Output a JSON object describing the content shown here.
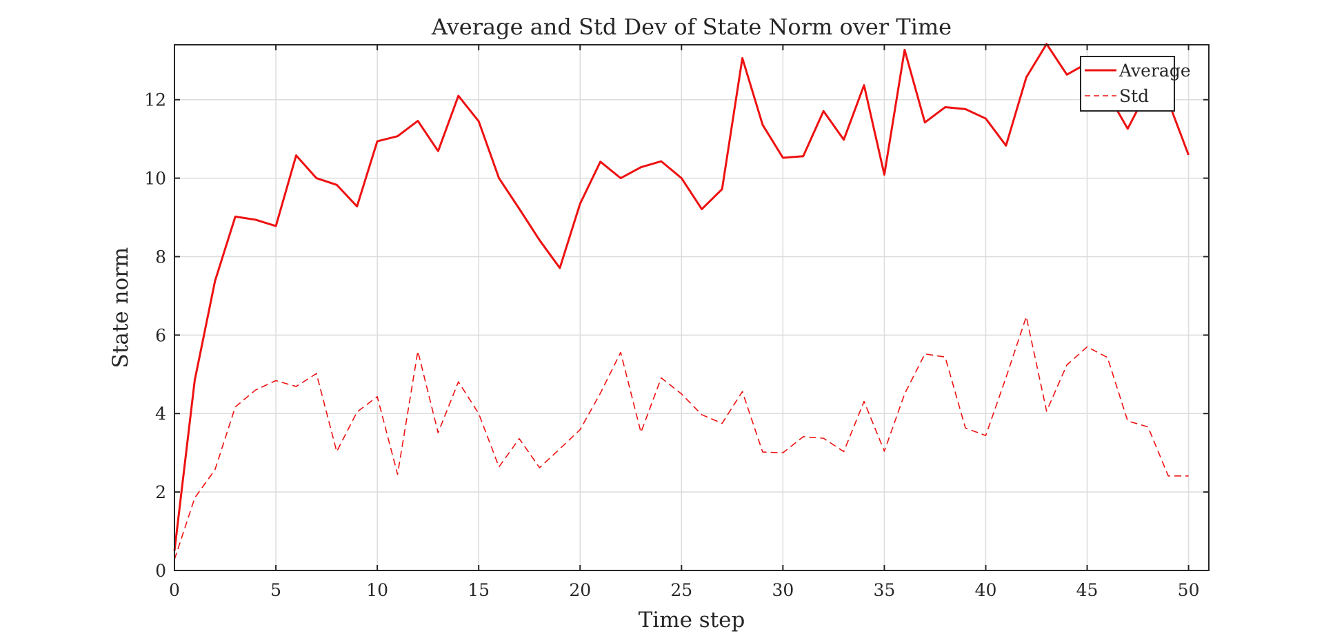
{
  "chart_data": {
    "type": "line",
    "title": "Average and Std Dev of State Norm over Time",
    "xlabel": "Time step",
    "ylabel": "State norm",
    "xlim": [
      0,
      51
    ],
    "ylim": [
      0,
      13.4
    ],
    "xticks": [
      0,
      5,
      10,
      15,
      20,
      25,
      30,
      35,
      40,
      45,
      50
    ],
    "yticks": [
      0,
      2,
      4,
      6,
      8,
      10,
      12
    ],
    "xtick_labels": [
      "0",
      "5",
      "10",
      "15",
      "20",
      "25",
      "30",
      "35",
      "40",
      "45",
      "50"
    ],
    "ytick_labels": [
      "0",
      "2",
      "4",
      "6",
      "8",
      "10",
      "12"
    ],
    "grid": true,
    "legend_position": "top-right",
    "x": [
      0,
      1,
      2,
      3,
      4,
      5,
      6,
      7,
      8,
      9,
      10,
      11,
      12,
      13,
      14,
      15,
      16,
      17,
      18,
      19,
      20,
      21,
      22,
      23,
      24,
      25,
      26,
      27,
      28,
      29,
      30,
      31,
      32,
      33,
      34,
      35,
      36,
      37,
      38,
      39,
      40,
      41,
      42,
      43,
      44,
      45,
      46,
      47,
      48,
      49,
      50
    ],
    "series": [
      {
        "name": "Average",
        "color": "#ee1111",
        "style": "solid",
        "values": [
          0.5,
          4.85,
          7.38,
          9.02,
          8.94,
          8.78,
          10.58,
          10.0,
          9.83,
          9.28,
          10.94,
          11.07,
          11.46,
          10.69,
          12.1,
          11.45,
          10.0,
          9.22,
          8.42,
          7.71,
          9.35,
          10.42,
          10.0,
          10.28,
          10.43,
          10.0,
          9.21,
          9.72,
          13.06,
          11.36,
          10.52,
          10.56,
          11.71,
          10.98,
          12.37,
          10.09,
          13.27,
          11.42,
          11.81,
          11.76,
          11.52,
          10.83,
          12.57,
          13.42,
          12.64,
          12.93,
          12.16,
          11.26,
          12.26,
          11.96,
          10.59
        ]
      },
      {
        "name": "Std",
        "color": "#ee1111",
        "style": "dashed",
        "values": [
          0.28,
          1.85,
          2.57,
          4.17,
          4.6,
          4.84,
          4.69,
          5.02,
          3.03,
          4.04,
          4.43,
          2.45,
          5.59,
          3.51,
          4.81,
          4.0,
          2.64,
          3.36,
          2.62,
          3.1,
          3.59,
          4.52,
          5.56,
          3.52,
          4.91,
          4.5,
          3.97,
          3.75,
          4.56,
          3.02,
          3.0,
          3.41,
          3.37,
          3.03,
          4.31,
          3.04,
          4.5,
          5.52,
          5.44,
          3.63,
          3.44,
          4.92,
          6.47,
          4.06,
          5.24,
          5.7,
          5.43,
          3.81,
          3.66,
          2.41,
          2.41
        ]
      }
    ]
  }
}
